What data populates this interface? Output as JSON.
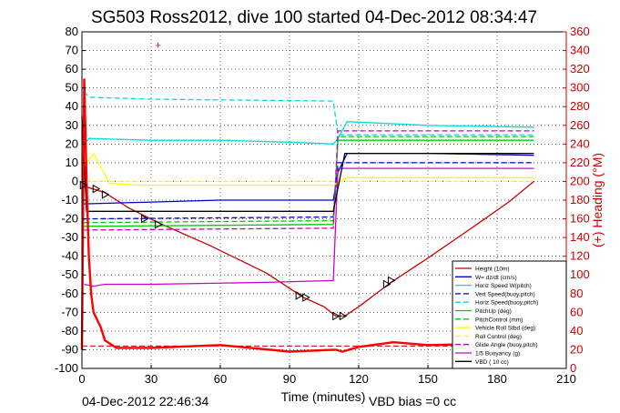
{
  "chart_data": {
    "type": "line",
    "title": "SG503 Ross2012, dive 100 started 04-Dec-2012 08:34:47",
    "xlabel": "Time (minutes)",
    "ylabel_right": "(+) Heading (°M)",
    "xlim": [
      0,
      210
    ],
    "ylim": [
      -100,
      80
    ],
    "ylim_right": [
      0,
      360
    ],
    "x_ticks": [
      "0",
      "30",
      "60",
      "90",
      "120",
      "150",
      "180",
      "210"
    ],
    "y_ticks": [
      "-100",
      "-90",
      "-80",
      "-70",
      "-60",
      "-50",
      "-40",
      "-30",
      "-20",
      "-10",
      "0",
      "10",
      "20",
      "30",
      "40",
      "50",
      "60",
      "70",
      "80"
    ],
    "y_right_ticks": [
      "0",
      "20",
      "40",
      "60",
      "80",
      "100",
      "120",
      "140",
      "160",
      "180",
      "200",
      "220",
      "240",
      "260",
      "280",
      "300",
      "320",
      "340",
      "360"
    ],
    "grid": true,
    "legend_position": "bottom-right",
    "footer_left": "04-Dec-2012 22:46:34",
    "footer_right": "VBD bias =0 cc",
    "colors": {
      "depth": "#cc0000",
      "w": "#0000cc",
      "horz_speed": "#00dddd",
      "pitch": "#00cc00",
      "roll": "#ffff00",
      "buoyancy": "#cc00cc",
      "vbd": "#000000",
      "heading": "#ff0000",
      "right_axis": "#cc0000"
    },
    "series": [
      {
        "name": "Height (10m)",
        "style": "solid",
        "color": "#cc0000",
        "x": [
          0,
          2,
          5,
          10,
          20,
          33,
          55,
          80,
          96,
          105,
          110,
          112,
          114,
          120,
          134,
          150,
          170,
          185,
          196
        ],
        "y": [
          0,
          -3,
          -4,
          -6,
          -14,
          -22,
          -34,
          -49,
          -62,
          -67,
          -72,
          -72,
          -72,
          -67,
          -54,
          -41,
          -24,
          -11,
          0
        ]
      },
      {
        "name": "W= dz/dt (cm/s)",
        "style": "solid",
        "color": "#0000cc",
        "x": [
          1,
          30,
          60,
          90,
          109,
          111,
          115,
          150,
          196
        ],
        "y": [
          -12,
          -11,
          -10,
          -10,
          -10,
          5,
          15,
          15,
          14
        ]
      },
      {
        "name": "Horiz Speed W(pitch)",
        "style": "solid",
        "color": "#00dddd",
        "x": [
          1,
          3,
          30,
          60,
          90,
          109,
          111,
          115,
          150,
          196
        ],
        "y": [
          20,
          23,
          22,
          22,
          21,
          20,
          23,
          32,
          30,
          29
        ]
      },
      {
        "name": "Vert Speed(buoy,pitch)",
        "style": "dashed",
        "color": "#0000cc",
        "x": [
          1,
          109,
          111,
          196
        ],
        "y": [
          -20,
          -19,
          10,
          10
        ]
      },
      {
        "name": "Horiz Speed(buoy,pitch)",
        "style": "dashed",
        "color": "#00dddd",
        "x": [
          1,
          3,
          30,
          109,
          111,
          196
        ],
        "y": [
          48,
          45,
          44,
          43,
          25,
          25
        ]
      },
      {
        "name": "PitchUp (deg)",
        "style": "solid",
        "color": "#00cc00",
        "x": [
          1,
          109,
          111,
          196
        ],
        "y": [
          -24,
          -23,
          22,
          22
        ]
      },
      {
        "name": "PitchControl (mm)",
        "style": "dashed",
        "color": "#00cc00",
        "x": [
          1,
          109,
          111,
          196
        ],
        "y": [
          -22,
          -21,
          24,
          24
        ]
      },
      {
        "name": "Vehicle Roll Stbd (deg)",
        "style": "solid",
        "color": "#ffff00",
        "x": [
          1,
          5,
          12,
          25,
          60,
          109,
          115,
          150,
          196
        ],
        "y": [
          8,
          15,
          -1,
          -2,
          -2,
          -2,
          2,
          2,
          2
        ]
      },
      {
        "name": "Roll Control (deg)",
        "style": "dashed",
        "color": "#ffff00",
        "x": [
          1,
          196
        ],
        "y": [
          0,
          0
        ]
      },
      {
        "name": "Glide Angle (buoy,pitch)",
        "style": "dashed",
        "color": "#cc00cc",
        "x": [
          1,
          109,
          111,
          196
        ],
        "y": [
          -26,
          -25,
          27,
          27
        ]
      },
      {
        "name": "1/5 Buoyancy (g)",
        "style": "solid",
        "color": "#cc00cc",
        "x": [
          1,
          5,
          10,
          30,
          80,
          109,
          111,
          196
        ],
        "y": [
          -55,
          -56,
          -55,
          -55,
          -54,
          -53,
          7,
          7
        ]
      },
      {
        "name": "VBD ( 10 cc)",
        "style": "solid",
        "color": "#000000",
        "x": [
          0,
          2,
          109,
          114,
          196
        ],
        "y": [
          35,
          -16,
          -16,
          15,
          15
        ]
      }
    ],
    "heading_series": {
      "name": "Heading",
      "axis": "right",
      "color": "#ff0000",
      "x": [
        0,
        1,
        2,
        3,
        4,
        5,
        6,
        7,
        8,
        10,
        15,
        30,
        60,
        90,
        110,
        113,
        120,
        135,
        150,
        170,
        180,
        196
      ],
      "y": [
        20,
        310,
        200,
        120,
        80,
        60,
        55,
        50,
        45,
        30,
        22,
        22,
        25,
        18,
        20,
        18,
        23,
        28,
        25,
        26,
        28,
        27
      ]
    },
    "reference_lines": [
      {
        "color": "#cc0000",
        "style": "dashed",
        "y": -88,
        "x_range": [
          0,
          210
        ]
      }
    ],
    "markers": {
      "symbol": "triangle",
      "points": [
        {
          "x": 0.5,
          "y": -2
        },
        {
          "x": 6,
          "y": -4
        },
        {
          "x": 10,
          "y": -7
        },
        {
          "x": 27,
          "y": -20
        },
        {
          "x": 33,
          "y": -23
        },
        {
          "x": 94,
          "y": -61
        },
        {
          "x": 97,
          "y": -62
        },
        {
          "x": 110,
          "y": -72
        },
        {
          "x": 113,
          "y": -72
        },
        {
          "x": 132,
          "y": -55
        },
        {
          "x": 134,
          "y": -53
        }
      ]
    },
    "outlier_point": {
      "x": 33,
      "y": 73
    }
  }
}
